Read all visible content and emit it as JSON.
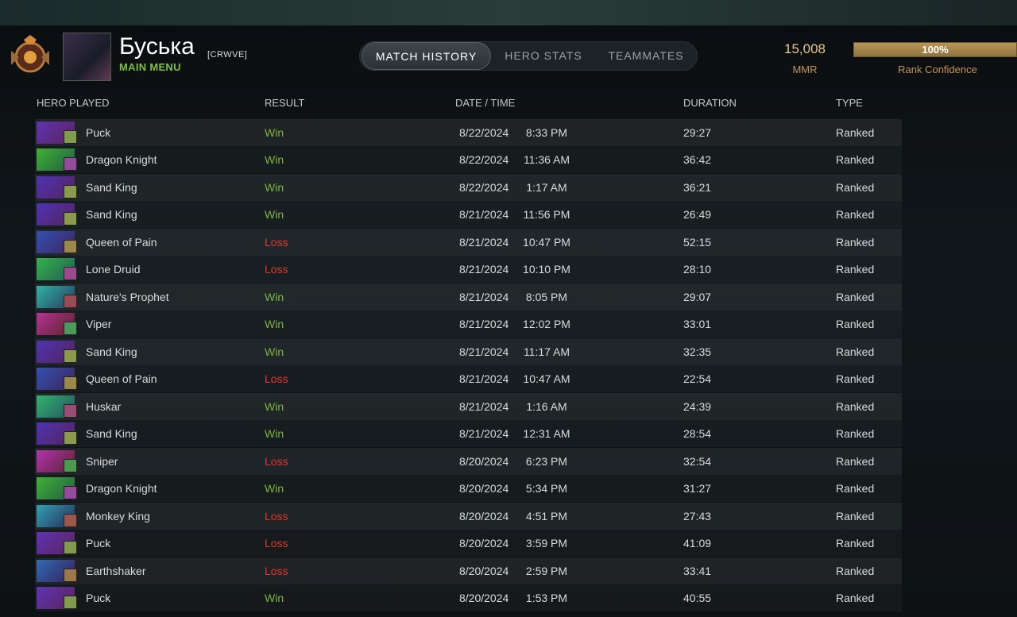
{
  "profile": {
    "name": "Буська",
    "tag": "[CRWVE]",
    "subtitle": "MAIN MENU"
  },
  "tabs": [
    "MATCH HISTORY",
    "HERO STATS",
    "TEAMMATES"
  ],
  "active_tab": 0,
  "mmr": {
    "value": "15,008",
    "label": "MMR"
  },
  "confidence": {
    "value": 100,
    "label": "100%",
    "caption": "Rank Confidence"
  },
  "table": {
    "columns": [
      "HERO PLAYED",
      "RESULT",
      "DATE / TIME",
      "DURATION",
      "TYPE"
    ],
    "rows": [
      {
        "hero": "Puck",
        "result": "Win",
        "date": "8/22/2024",
        "time": "8:33 PM",
        "duration": "29:27",
        "type": "Ranked",
        "color": "#7cb53f"
      },
      {
        "hero": "Dragon Knight",
        "result": "Win",
        "date": "8/22/2024",
        "time": "11:36 AM",
        "duration": "36:42",
        "type": "Ranked",
        "color": "#7cb53f"
      },
      {
        "hero": "Sand King",
        "result": "Win",
        "date": "8/22/2024",
        "time": "1:17 AM",
        "duration": "36:21",
        "type": "Ranked",
        "color": "#7cb53f"
      },
      {
        "hero": "Sand King",
        "result": "Win",
        "date": "8/21/2024",
        "time": "11:56 PM",
        "duration": "26:49",
        "type": "Ranked",
        "color": "#7cb53f"
      },
      {
        "hero": "Queen of Pain",
        "result": "Loss",
        "date": "8/21/2024",
        "time": "10:47 PM",
        "duration": "52:15",
        "type": "Ranked",
        "color": "#e0392b"
      },
      {
        "hero": "Lone Druid",
        "result": "Loss",
        "date": "8/21/2024",
        "time": "10:10 PM",
        "duration": "28:10",
        "type": "Ranked",
        "color": "#e0392b"
      },
      {
        "hero": "Nature's Prophet",
        "result": "Win",
        "date": "8/21/2024",
        "time": "8:05 PM",
        "duration": "29:07",
        "type": "Ranked",
        "color": "#7cb53f"
      },
      {
        "hero": "Viper",
        "result": "Win",
        "date": "8/21/2024",
        "time": "12:02 PM",
        "duration": "33:01",
        "type": "Ranked",
        "color": "#7cb53f"
      },
      {
        "hero": "Sand King",
        "result": "Win",
        "date": "8/21/2024",
        "time": "11:17 AM",
        "duration": "32:35",
        "type": "Ranked",
        "color": "#7cb53f"
      },
      {
        "hero": "Queen of Pain",
        "result": "Loss",
        "date": "8/21/2024",
        "time": "10:47 AM",
        "duration": "22:54",
        "type": "Ranked",
        "color": "#e0392b"
      },
      {
        "hero": "Huskar",
        "result": "Win",
        "date": "8/21/2024",
        "time": "1:16 AM",
        "duration": "24:39",
        "type": "Ranked",
        "color": "#7cb53f"
      },
      {
        "hero": "Sand King",
        "result": "Win",
        "date": "8/21/2024",
        "time": "12:31 AM",
        "duration": "28:54",
        "type": "Ranked",
        "color": "#7cb53f"
      },
      {
        "hero": "Sniper",
        "result": "Loss",
        "date": "8/20/2024",
        "time": "6:23 PM",
        "duration": "32:54",
        "type": "Ranked",
        "color": "#e0392b"
      },
      {
        "hero": "Dragon Knight",
        "result": "Win",
        "date": "8/20/2024",
        "time": "5:34 PM",
        "duration": "31:27",
        "type": "Ranked",
        "color": "#7cb53f"
      },
      {
        "hero": "Monkey King",
        "result": "Loss",
        "date": "8/20/2024",
        "time": "4:51 PM",
        "duration": "27:43",
        "type": "Ranked",
        "color": "#e0392b"
      },
      {
        "hero": "Puck",
        "result": "Loss",
        "date": "8/20/2024",
        "time": "3:59 PM",
        "duration": "41:09",
        "type": "Ranked",
        "color": "#e0392b"
      },
      {
        "hero": "Earthshaker",
        "result": "Loss",
        "date": "8/20/2024",
        "time": "2:59 PM",
        "duration": "33:41",
        "type": "Ranked",
        "color": "#e0392b"
      },
      {
        "hero": "Puck",
        "result": "Win",
        "date": "8/20/2024",
        "time": "1:53 PM",
        "duration": "40:55",
        "type": "Ranked",
        "color": "#7cb53f"
      }
    ]
  }
}
